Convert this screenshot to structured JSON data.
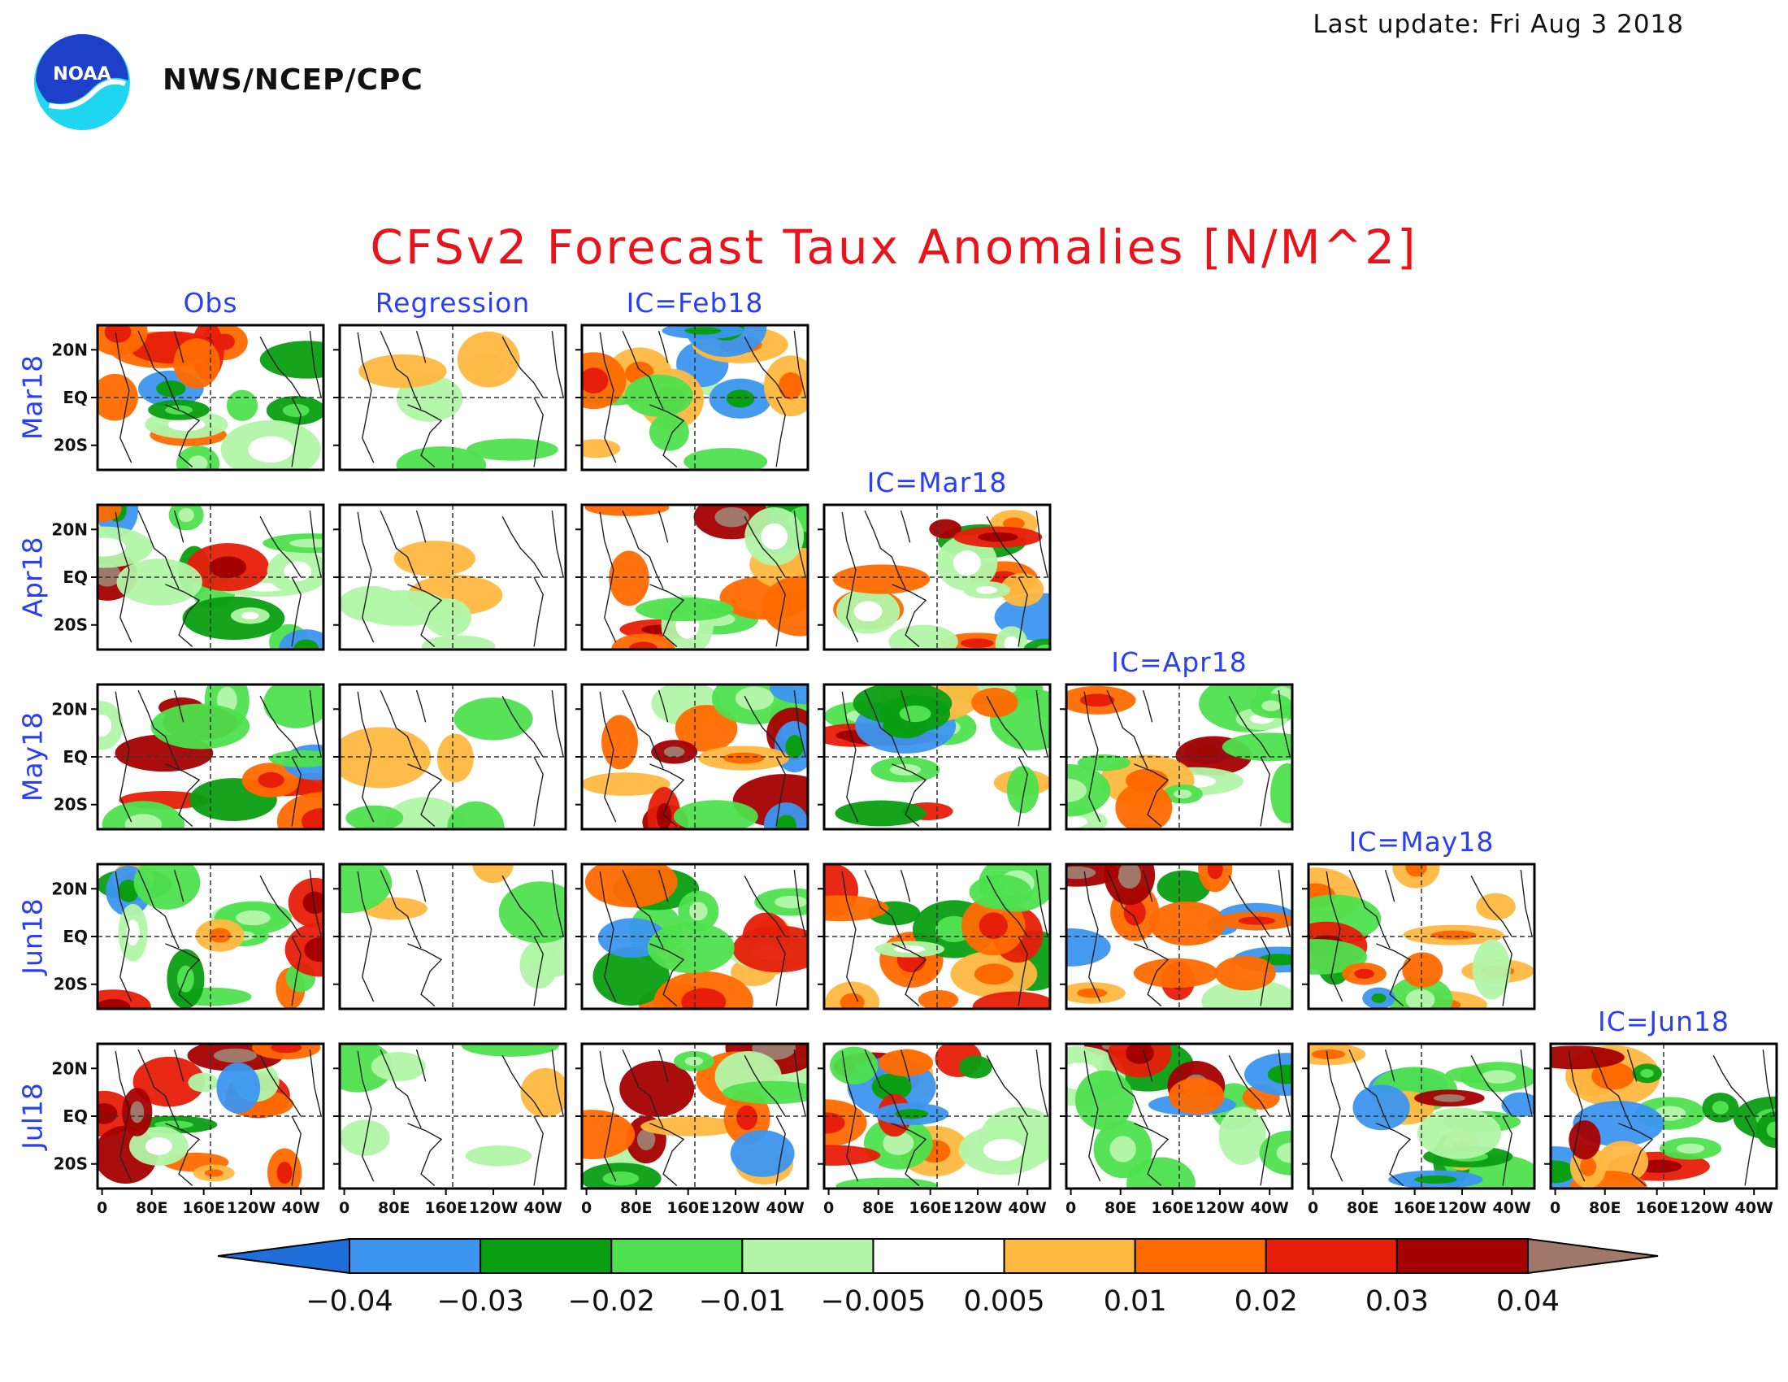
{
  "header": {
    "last_update": "Last update: Fri Aug 3 2018",
    "org": "NWS/NCEP/CPC",
    "logo_text": "NOAA"
  },
  "title": "CFSv2 Forecast Taux Anomalies [N/M^2]",
  "columns": [
    "Obs",
    "Regression",
    "IC=Feb18",
    "IC=Mar18",
    "IC=Apr18",
    "IC=May18",
    "IC=Jun18"
  ],
  "rows": [
    "Mar18",
    "Apr18",
    "May18",
    "Jun18",
    "Jul18"
  ],
  "lat_labels": [
    "20N",
    "EQ",
    "20S"
  ],
  "lon_labels": [
    "0",
    "80E",
    "160E",
    "120W",
    "40W"
  ],
  "colorbar": {
    "labels": [
      "−0.04",
      "−0.03",
      "−0.02",
      "−0.01",
      "−0.005",
      "0.005",
      "0.01",
      "0.02",
      "0.03",
      "0.04"
    ],
    "colors": [
      "#1e6fd9",
      "#3c96f0",
      "#0a9e12",
      "#4ee04e",
      "#b2f5a8",
      "#ffffff",
      "#ffb840",
      "#ff6a00",
      "#e61e0a",
      "#a50000",
      "#a07869"
    ]
  }
}
